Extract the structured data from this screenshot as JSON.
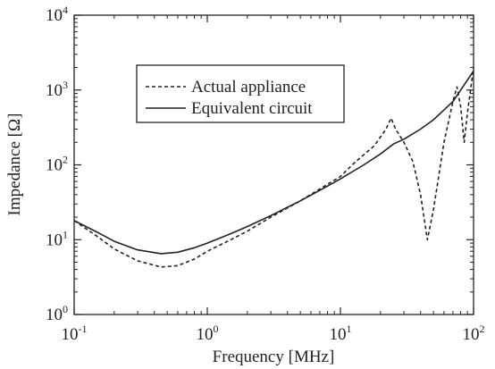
{
  "chart_data": {
    "type": "line",
    "title": "",
    "xlabel": "Frequency [MHz]",
    "ylabel": "Impedance [Ω]",
    "x_scale": "log",
    "y_scale": "log",
    "xlim": [
      0.1,
      100
    ],
    "ylim": [
      1,
      10000
    ],
    "grid": false,
    "legend_position": "upper-left inside",
    "x_ticks": [
      {
        "value": 0.1,
        "base": "10",
        "exp": "-1"
      },
      {
        "value": 1,
        "base": "10",
        "exp": "0"
      },
      {
        "value": 10,
        "base": "10",
        "exp": "1"
      },
      {
        "value": 100,
        "base": "10",
        "exp": "2"
      }
    ],
    "y_ticks": [
      {
        "value": 1,
        "base": "10",
        "exp": "0"
      },
      {
        "value": 10,
        "base": "10",
        "exp": "1"
      },
      {
        "value": 100,
        "base": "10",
        "exp": "2"
      },
      {
        "value": 1000,
        "base": "10",
        "exp": "3"
      },
      {
        "value": 10000,
        "base": "10",
        "exp": "4"
      }
    ],
    "series": [
      {
        "name": "Actual appliance",
        "style": "dashed",
        "color": "#222222",
        "points": [
          {
            "x": 0.1,
            "y": 18
          },
          {
            "x": 0.15,
            "y": 11
          },
          {
            "x": 0.2,
            "y": 7.5
          },
          {
            "x": 0.3,
            "y": 5.2
          },
          {
            "x": 0.45,
            "y": 4.3
          },
          {
            "x": 0.6,
            "y": 4.5
          },
          {
            "x": 0.8,
            "y": 5.5
          },
          {
            "x": 1,
            "y": 7
          },
          {
            "x": 1.5,
            "y": 10
          },
          {
            "x": 2,
            "y": 13
          },
          {
            "x": 3,
            "y": 20
          },
          {
            "x": 5,
            "y": 33
          },
          {
            "x": 8,
            "y": 55
          },
          {
            "x": 10,
            "y": 70
          },
          {
            "x": 13,
            "y": 110
          },
          {
            "x": 18,
            "y": 180
          },
          {
            "x": 22,
            "y": 300
          },
          {
            "x": 24,
            "y": 420
          },
          {
            "x": 26,
            "y": 300
          },
          {
            "x": 30,
            "y": 200
          },
          {
            "x": 35,
            "y": 110
          },
          {
            "x": 40,
            "y": 40
          },
          {
            "x": 45,
            "y": 10
          },
          {
            "x": 50,
            "y": 25
          },
          {
            "x": 60,
            "y": 200
          },
          {
            "x": 70,
            "y": 700
          },
          {
            "x": 75,
            "y": 1100
          },
          {
            "x": 80,
            "y": 600
          },
          {
            "x": 85,
            "y": 200
          },
          {
            "x": 90,
            "y": 500
          },
          {
            "x": 100,
            "y": 2000
          }
        ]
      },
      {
        "name": "Equivalent circuit",
        "style": "solid",
        "color": "#222222",
        "points": [
          {
            "x": 0.1,
            "y": 18
          },
          {
            "x": 0.15,
            "y": 12.5
          },
          {
            "x": 0.2,
            "y": 9.5
          },
          {
            "x": 0.3,
            "y": 7.3
          },
          {
            "x": 0.45,
            "y": 6.5
          },
          {
            "x": 0.6,
            "y": 6.8
          },
          {
            "x": 0.8,
            "y": 7.8
          },
          {
            "x": 1,
            "y": 9
          },
          {
            "x": 1.5,
            "y": 12
          },
          {
            "x": 2,
            "y": 15
          },
          {
            "x": 3,
            "y": 21
          },
          {
            "x": 5,
            "y": 33
          },
          {
            "x": 8,
            "y": 52
          },
          {
            "x": 10,
            "y": 65
          },
          {
            "x": 15,
            "y": 100
          },
          {
            "x": 20,
            "y": 140
          },
          {
            "x": 25,
            "y": 190
          },
          {
            "x": 30,
            "y": 220
          },
          {
            "x": 40,
            "y": 300
          },
          {
            "x": 50,
            "y": 400
          },
          {
            "x": 70,
            "y": 700
          },
          {
            "x": 100,
            "y": 1800
          }
        ]
      }
    ]
  }
}
